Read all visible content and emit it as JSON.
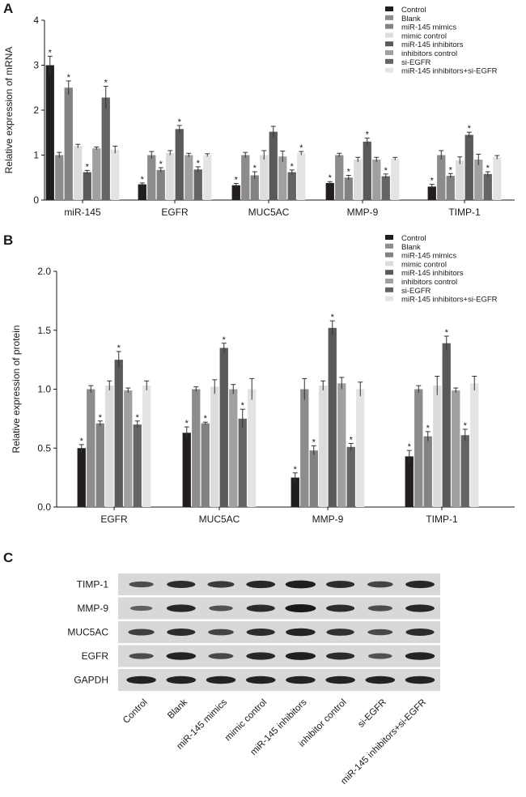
{
  "panels": {
    "a": {
      "letter": "A"
    },
    "b": {
      "letter": "B"
    },
    "c": {
      "letter": "C"
    }
  },
  "colors": {
    "Control": "#221e1f",
    "Blank": "#8c8c8c",
    "miR-145 mimics": "#828282",
    "mimic control": "#dcdcdc",
    "miR-145 inhibitors": "#5a5a5a",
    "inhibitors control": "#a0a0a0",
    "si-EGFR": "#646464",
    "miR-145 inhibitors+si-EGFR": "#e4e4e4"
  },
  "chart_data": [
    {
      "type": "bar",
      "panel": "A",
      "ylabel": "Relative expression of mRNA",
      "ylim": [
        0,
        4
      ],
      "yticks": [
        "0",
        "1",
        "2",
        "3",
        "4"
      ],
      "categories": [
        "miR-145",
        "EGFR",
        "MUC5AC",
        "MMP-9",
        "TIMP-1"
      ],
      "series": [
        {
          "name": "Control",
          "values": [
            3.0,
            0.35,
            0.33,
            0.38,
            0.3
          ],
          "errors": [
            0.2,
            0.03,
            0.04,
            0.03,
            0.05
          ],
          "star": [
            true,
            true,
            true,
            true,
            true
          ]
        },
        {
          "name": "Blank",
          "values": [
            1.0,
            1.0,
            1.0,
            1.0,
            1.0
          ],
          "errors": [
            0.06,
            0.08,
            0.06,
            0.04,
            0.1
          ],
          "star": [
            false,
            false,
            false,
            false,
            false
          ]
        },
        {
          "name": "miR-145 mimics",
          "values": [
            2.5,
            0.67,
            0.55,
            0.5,
            0.54
          ],
          "errors": [
            0.15,
            0.05,
            0.08,
            0.05,
            0.05
          ],
          "star": [
            true,
            true,
            true,
            true,
            true
          ]
        },
        {
          "name": "mimic control",
          "values": [
            1.2,
            1.05,
            1.0,
            0.9,
            0.88
          ],
          "errors": [
            0.04,
            0.05,
            0.1,
            0.05,
            0.08
          ],
          "star": [
            false,
            false,
            false,
            false,
            false
          ]
        },
        {
          "name": "miR-145 inhibitors",
          "values": [
            0.62,
            1.58,
            1.52,
            1.3,
            1.45
          ],
          "errors": [
            0.04,
            0.08,
            0.12,
            0.08,
            0.06
          ],
          "star": [
            true,
            true,
            false,
            true,
            true
          ]
        },
        {
          "name": "inhibitors control",
          "values": [
            1.15,
            1.0,
            0.97,
            0.9,
            0.9
          ],
          "errors": [
            0.03,
            0.04,
            0.12,
            0.05,
            0.12
          ],
          "star": [
            false,
            false,
            false,
            false,
            false
          ]
        },
        {
          "name": "si-EGFR",
          "values": [
            2.28,
            0.68,
            0.62,
            0.53,
            0.58
          ],
          "errors": [
            0.25,
            0.06,
            0.05,
            0.05,
            0.05
          ],
          "star": [
            true,
            true,
            true,
            true,
            true
          ]
        },
        {
          "name": "miR-145 inhibitors+si-EGFR",
          "values": [
            1.12,
            1.0,
            1.04,
            0.92,
            0.95
          ],
          "errors": [
            0.08,
            0.03,
            0.04,
            0.03,
            0.04
          ],
          "star": [
            false,
            false,
            true,
            false,
            false
          ]
        }
      ]
    },
    {
      "type": "bar",
      "panel": "B",
      "ylabel": "Relative expression of protein",
      "ylim": [
        0,
        2.0
      ],
      "yticks": [
        "0.0",
        "0.5",
        "1.0",
        "1.5",
        "2.0"
      ],
      "categories": [
        "EGFR",
        "MUC5AC",
        "MMP-9",
        "TIMP-1"
      ],
      "series": [
        {
          "name": "Control",
          "values": [
            0.5,
            0.63,
            0.25,
            0.43
          ],
          "errors": [
            0.03,
            0.05,
            0.04,
            0.05
          ],
          "star": [
            true,
            true,
            true,
            true
          ]
        },
        {
          "name": "Blank",
          "values": [
            1.0,
            1.0,
            1.0,
            1.0
          ],
          "errors": [
            0.03,
            0.02,
            0.09,
            0.03
          ],
          "star": [
            false,
            false,
            false,
            false
          ]
        },
        {
          "name": "miR-145 mimics",
          "values": [
            0.71,
            0.71,
            0.48,
            0.6
          ],
          "errors": [
            0.02,
            0.01,
            0.04,
            0.04
          ],
          "star": [
            true,
            true,
            true,
            true
          ]
        },
        {
          "name": "mimic control",
          "values": [
            1.03,
            1.02,
            1.03,
            1.03
          ],
          "errors": [
            0.04,
            0.06,
            0.04,
            0.08
          ],
          "star": [
            false,
            false,
            false,
            false
          ]
        },
        {
          "name": "miR-145 inhibitors",
          "values": [
            1.25,
            1.35,
            1.52,
            1.39
          ],
          "errors": [
            0.07,
            0.04,
            0.06,
            0.06
          ],
          "star": [
            true,
            true,
            true,
            true
          ]
        },
        {
          "name": "inhibitors control",
          "values": [
            0.99,
            1.0,
            1.05,
            0.99
          ],
          "errors": [
            0.02,
            0.04,
            0.05,
            0.02
          ],
          "star": [
            false,
            false,
            false,
            false
          ]
        },
        {
          "name": "si-EGFR",
          "values": [
            0.7,
            0.75,
            0.51,
            0.61
          ],
          "errors": [
            0.03,
            0.08,
            0.03,
            0.05
          ],
          "star": [
            true,
            true,
            true,
            true
          ]
        },
        {
          "name": "miR-145 inhibitors+si-EGFR",
          "values": [
            1.03,
            1.0,
            1.0,
            1.05
          ],
          "errors": [
            0.04,
            0.09,
            0.06,
            0.06
          ],
          "star": [
            false,
            false,
            false,
            false
          ]
        }
      ]
    }
  ],
  "star_symbol": "*",
  "blot": {
    "proteins": [
      "TIMP-1",
      "MMP-9",
      "MUC5AC",
      "EGFR",
      "GAPDH"
    ],
    "lanes": [
      "Control",
      "Blank",
      "miR-145 mimics",
      "mimic control",
      "miR-145 inhibitors",
      "inhibitor control",
      "si-EGFR",
      "miR-145 inhibitors+si-EGFR"
    ],
    "band_intensity": [
      [
        0.45,
        0.8,
        0.65,
        0.85,
        0.95,
        0.8,
        0.55,
        0.85
      ],
      [
        0.25,
        0.85,
        0.4,
        0.8,
        1.0,
        0.8,
        0.45,
        0.85
      ],
      [
        0.6,
        0.8,
        0.55,
        0.8,
        0.9,
        0.75,
        0.5,
        0.8
      ],
      [
        0.45,
        0.9,
        0.5,
        0.85,
        0.95,
        0.8,
        0.4,
        0.9
      ],
      [
        0.9,
        0.9,
        0.9,
        0.9,
        0.9,
        0.9,
        0.9,
        0.9
      ]
    ]
  }
}
